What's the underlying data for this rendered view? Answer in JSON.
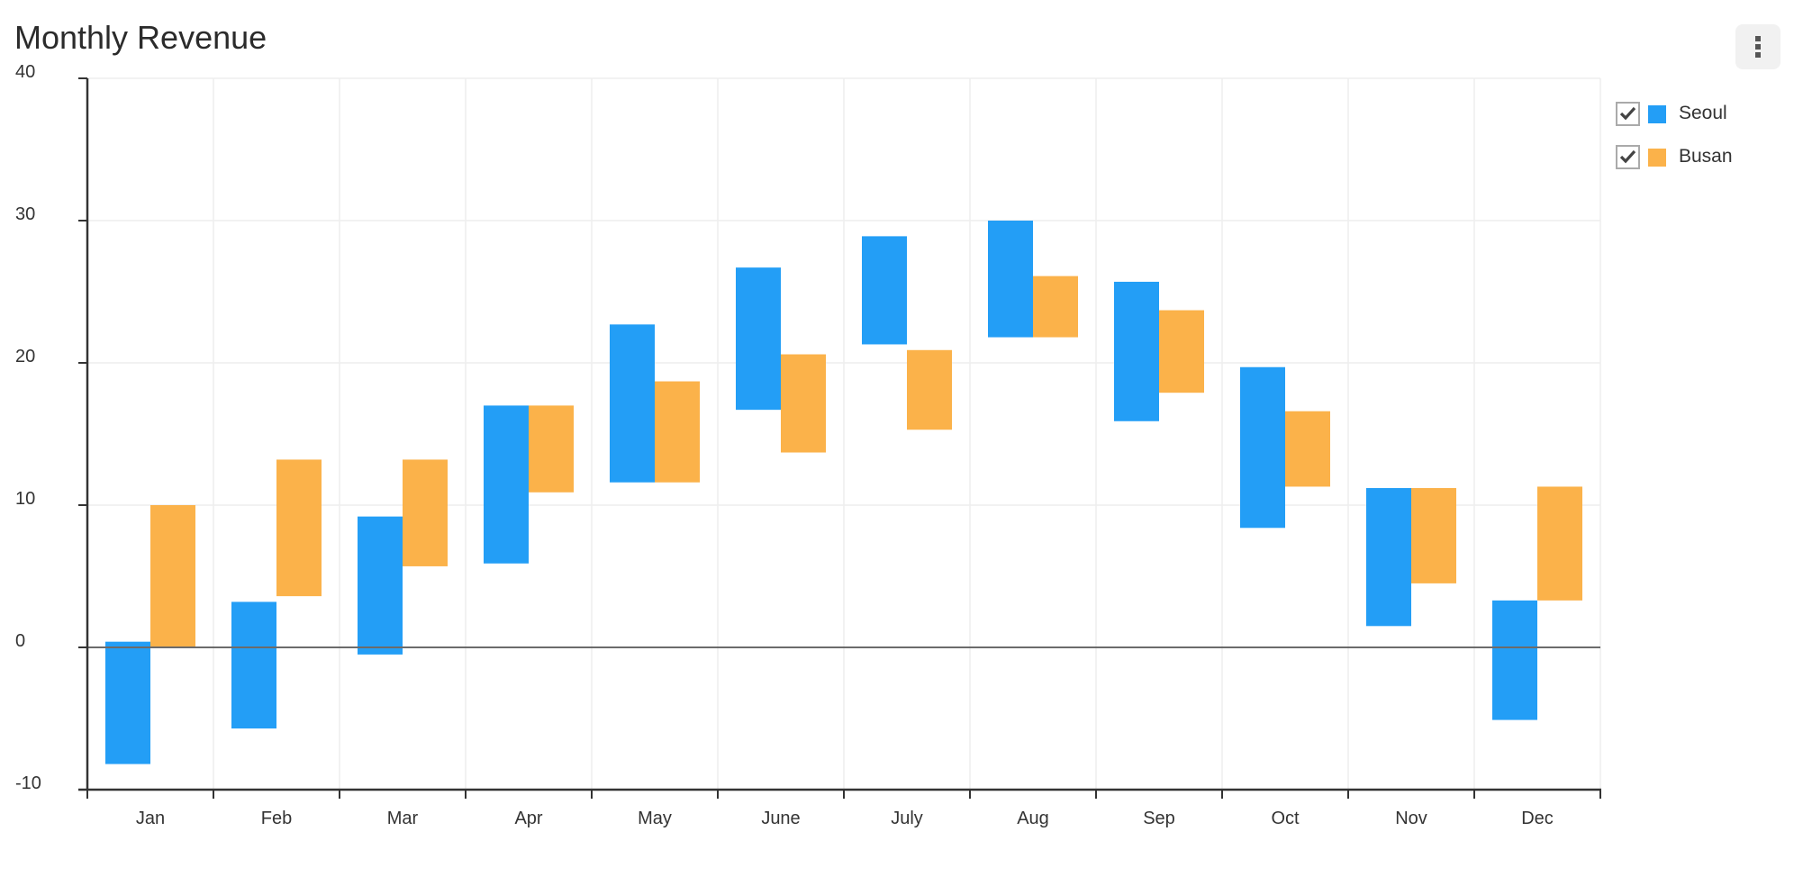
{
  "header": {
    "title": "Monthly Revenue",
    "menu_icon": "more-vertical-icon"
  },
  "legend": {
    "items": [
      {
        "label": "Seoul",
        "color": "#239ef6",
        "checked": true
      },
      {
        "label": "Busan",
        "color": "#fbb24a",
        "checked": true
      }
    ]
  },
  "colors": {
    "seoul": "#239ef6",
    "busan": "#fbb24a",
    "grid": "#eeeeee",
    "axis": "#333333",
    "zero_line": "#6b6b6b",
    "menu_bg": "#f1f1f1"
  },
  "chart_data": {
    "type": "bar",
    "subtype": "floating-range",
    "title": "Monthly Revenue",
    "xlabel": "",
    "ylabel": "",
    "ylim": [
      -10,
      40
    ],
    "yticks": [
      -10,
      0,
      10,
      20,
      30,
      40
    ],
    "grid": true,
    "legend_position": "right",
    "categories": [
      "Jan",
      "Feb",
      "Mar",
      "Apr",
      "May",
      "June",
      "July",
      "Aug",
      "Sep",
      "Oct",
      "Nov",
      "Dec"
    ],
    "series": [
      {
        "name": "Seoul",
        "color": "#239ef6",
        "values": [
          [
            -8.2,
            0.4
          ],
          [
            -5.7,
            3.2
          ],
          [
            -0.5,
            9.2
          ],
          [
            5.9,
            17.0
          ],
          [
            11.6,
            22.7
          ],
          [
            16.7,
            26.7
          ],
          [
            21.3,
            28.9
          ],
          [
            21.8,
            30.0
          ],
          [
            15.9,
            25.7
          ],
          [
            8.4,
            19.7
          ],
          [
            1.5,
            11.2
          ],
          [
            -5.1,
            3.3
          ]
        ]
      },
      {
        "name": "Busan",
        "color": "#fbb24a",
        "values": [
          [
            0.0,
            10.0
          ],
          [
            3.6,
            13.2
          ],
          [
            5.7,
            13.2
          ],
          [
            10.9,
            17.0
          ],
          [
            11.6,
            18.7
          ],
          [
            13.7,
            20.6
          ],
          [
            15.3,
            20.9
          ],
          [
            21.8,
            26.1
          ],
          [
            17.9,
            23.7
          ],
          [
            11.3,
            16.6
          ],
          [
            4.5,
            11.2
          ],
          [
            3.3,
            11.3
          ]
        ]
      }
    ]
  }
}
